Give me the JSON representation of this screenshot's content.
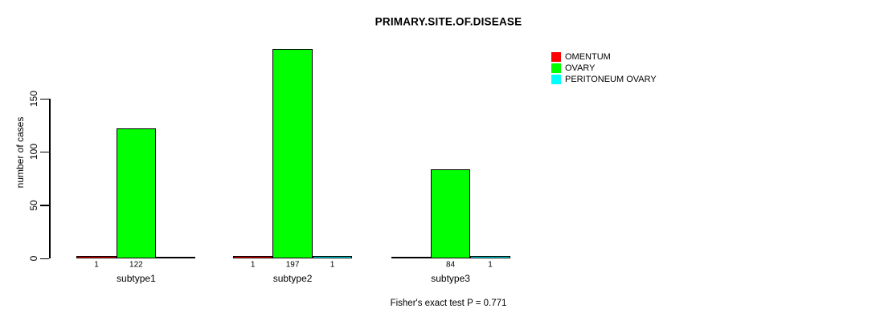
{
  "chart_data": {
    "type": "bar",
    "title": "PRIMARY.SITE.OF.DISEASE",
    "ylabel": "number of cases",
    "xlabel": "",
    "categories": [
      "subtype1",
      "subtype2",
      "subtype3"
    ],
    "series": [
      {
        "name": "OMENTUM",
        "color": "#ff0000",
        "values": [
          1,
          1,
          0
        ]
      },
      {
        "name": "OVARY",
        "color": "#00ff00",
        "values": [
          122,
          197,
          84
        ]
      },
      {
        "name": "PERITONEUM OVARY",
        "color": "#00ffff",
        "values": [
          0,
          1,
          1
        ]
      }
    ],
    "yticks": [
      0,
      50,
      100,
      150
    ],
    "ylim": [
      0,
      200
    ],
    "grid": false,
    "bar_value_labels_shown_for_nonzero_only": true,
    "legend_position": "top-right",
    "caption": "Fisher's exact test P = 0.771",
    "background": "#ffffff",
    "text_color": "#000000",
    "axis_color": "#000000",
    "bar_border_color": "#000000"
  }
}
